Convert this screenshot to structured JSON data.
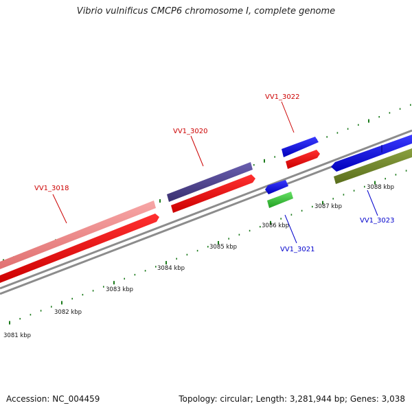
{
  "title": "Vibrio vulnificus CMCP6 chromosome I, complete genome",
  "footer": {
    "accession": "Accession: NC_004459",
    "summary": "Topology: circular; Length: 3,281,944 bp; Genes: 3,038"
  },
  "colors": {
    "backbone": "#8c8c8c",
    "tick": "#1a7a1a",
    "red_label": "#cc0000",
    "blue_label": "#0000cc"
  },
  "scale_labels": [
    {
      "text": "3081 kbp",
      "kbp": 3081
    },
    {
      "text": "3082 kbp",
      "kbp": 3082
    },
    {
      "text": "3083 kbp",
      "kbp": 3083
    },
    {
      "text": "3084 kbp",
      "kbp": 3084
    },
    {
      "text": "3085 kbp",
      "kbp": 3085
    },
    {
      "text": "3086 kbp",
      "kbp": 3086
    },
    {
      "text": "3087 kbp",
      "kbp": 3087
    },
    {
      "text": "3088 kbp",
      "kbp": 3088
    }
  ],
  "gene_labels": [
    {
      "text": "VV1_3018",
      "color": "red"
    },
    {
      "text": "VV1_3020",
      "color": "red"
    },
    {
      "text": "VV1_3022",
      "color": "red"
    },
    {
      "text": "VV1_3021",
      "color": "blue"
    },
    {
      "text": "VV1_3023",
      "color": "blue"
    }
  ]
}
